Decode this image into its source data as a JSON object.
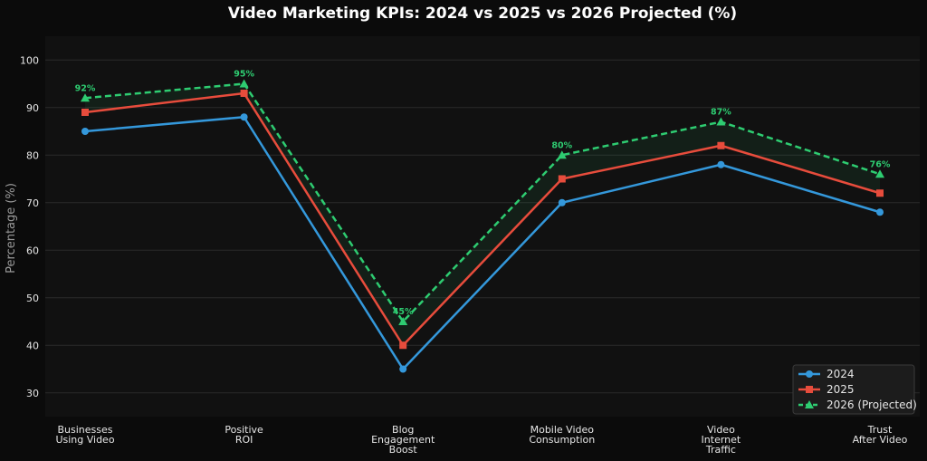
{
  "chart_data": {
    "type": "line",
    "title": "Video Marketing KPIs: 2024 vs 2025 vs 2026 Projected (%)",
    "xlabel": "",
    "ylabel": "Percentage (%)",
    "categories": [
      [
        "Businesses",
        "Using Video"
      ],
      [
        "Positive",
        "ROI"
      ],
      [
        "Blog",
        "Engagement",
        "Boost"
      ],
      [
        "Mobile Video",
        "Consumption"
      ],
      [
        "Video",
        "Internet",
        "Traffic"
      ],
      [
        "Trust",
        "After Video"
      ]
    ],
    "ylim": [
      25,
      105
    ],
    "yticks": [
      30,
      40,
      50,
      60,
      70,
      80,
      90,
      100
    ],
    "grid": true,
    "legend_position": "bottom-right",
    "series": [
      {
        "name": "2024",
        "values": [
          85,
          88,
          35,
          70,
          78,
          68
        ],
        "color": "#3498db",
        "marker": "circle",
        "dashed": false
      },
      {
        "name": "2025",
        "values": [
          89,
          93,
          40,
          75,
          82,
          72
        ],
        "color": "#e74c3c",
        "marker": "square",
        "dashed": false
      },
      {
        "name": "2026 (Projected)",
        "values": [
          92,
          95,
          45,
          80,
          87,
          76
        ],
        "color": "#2ecc71",
        "marker": "triangle",
        "dashed": true
      }
    ],
    "data_labels": {
      "series": "2026 (Projected)",
      "texts": [
        "92%",
        "95%",
        "45%",
        "80%",
        "87%",
        "76%"
      ]
    },
    "fill_between": {
      "from": "2025",
      "to": "2026 (Projected)",
      "color": "#2ecc71"
    }
  },
  "colors": {
    "page_background": "#0b0b0b",
    "plot_background": "#111111",
    "grid": "#2a2a2a"
  }
}
